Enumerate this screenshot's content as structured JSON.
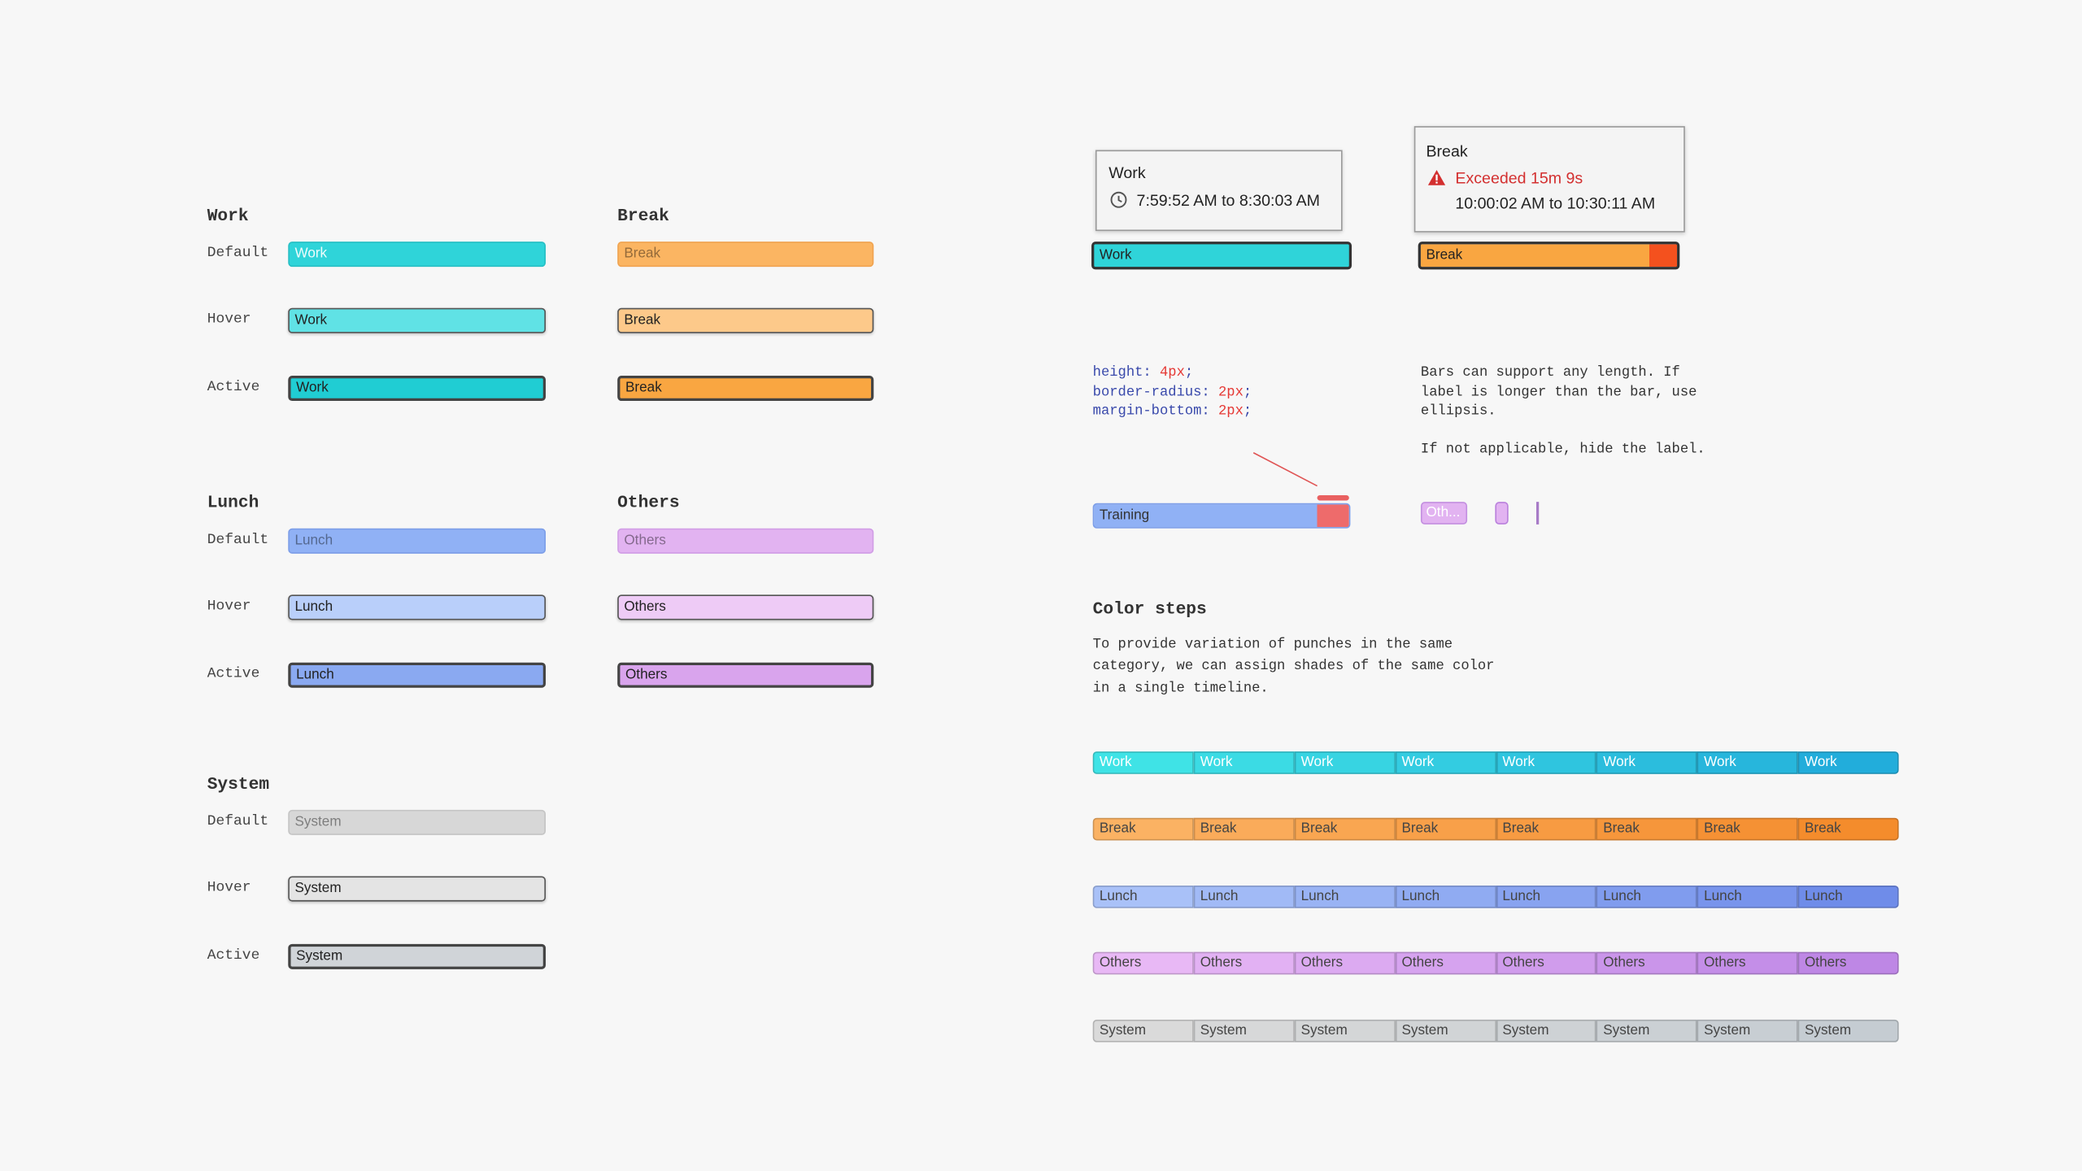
{
  "states": {
    "labels": [
      "Default",
      "Hover",
      "Active"
    ],
    "groups": [
      {
        "name": "Work",
        "colors": [
          "#2fd4d9",
          "#60e2e5",
          "#20cdd3"
        ],
        "border": "#27bfc4"
      },
      {
        "name": "Break",
        "colors": [
          "#fbb562",
          "#fdc98a",
          "#f9a641"
        ],
        "border": "#f0a350"
      },
      {
        "name": "Lunch",
        "colors": [
          "#90b1f5",
          "#b9cffa",
          "#8aa9f1"
        ],
        "border": "#7d9ee8"
      },
      {
        "name": "Others",
        "colors": [
          "#e2b3f1",
          "#eecbf6",
          "#d9a4ed"
        ],
        "border": "#d19ee6"
      },
      {
        "name": "System",
        "colors": [
          "#d7d7d7",
          "#e4e4e4",
          "#d0d4d8"
        ],
        "border": "#c4c4c4"
      }
    ]
  },
  "tooltips": {
    "work": {
      "title": "Work",
      "time": "7:59:52 AM to 8:30:03 AM",
      "bar": "Work"
    },
    "break": {
      "title": "Break",
      "warning": "Exceeded 15m 9s",
      "time": "10:00:02 AM to 10:30:11 AM",
      "bar": "Break"
    }
  },
  "code": [
    {
      "key": "height:",
      "val": "4px",
      "end": ";"
    },
    {
      "key": "border-radius:",
      "val": "2px",
      "end": ";"
    },
    {
      "key": "margin-bottom:",
      "val": "2px",
      "end": ";"
    }
  ],
  "notes": {
    "lines": [
      "Bars can support any length. If",
      "label is longer than the bar, use",
      "ellipsis."
    ],
    "hide": "If not applicable, hide the label."
  },
  "examples": {
    "training": "Training",
    "short": "Oth..."
  },
  "color_steps": {
    "title": "Color steps",
    "description": [
      "To provide variation of punches in the same",
      "category, we can assign shades of the same color",
      "in a single timeline."
    ],
    "rows": [
      {
        "label": "Work",
        "colors": [
          "#3fe3e6",
          "#3bdbe4",
          "#37d4e2",
          "#33cce1",
          "#2fc5df",
          "#2bbddd",
          "#27b6dc",
          "#22addb"
        ]
      },
      {
        "label": "Break",
        "colors": [
          "#fbb263",
          "#faab5a",
          "#f9a651",
          "#f8a049",
          "#f79b42",
          "#f6963b",
          "#f59134",
          "#f48c2c"
        ]
      },
      {
        "label": "Lunch",
        "colors": [
          "#a9c1f8",
          "#a1baf6",
          "#99b3f4",
          "#90abf2",
          "#88a3f0",
          "#809cee",
          "#7894ec",
          "#6f8ce9"
        ]
      },
      {
        "label": "Others",
        "colors": [
          "#e8b8f5",
          "#e2b1f3",
          "#dcaaf1",
          "#d6a3ef",
          "#d09cec",
          "#ca95ea",
          "#c48ee8",
          "#be87e5"
        ]
      },
      {
        "label": "System",
        "colors": [
          "#dadada",
          "#d7d8d9",
          "#d4d6d7",
          "#d1d4d6",
          "#ced2d5",
          "#cbd0d4",
          "#c8ced3",
          "#c5ccd2"
        ]
      }
    ]
  }
}
